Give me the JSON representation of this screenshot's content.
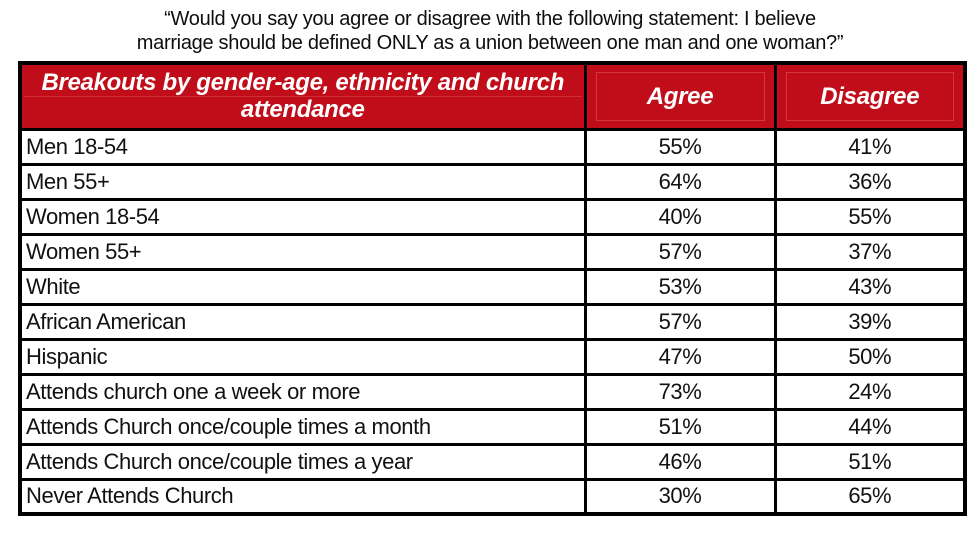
{
  "title": {
    "line1": "“Would you say you agree or disagree with the following statement: I believe",
    "line2": "marriage should  be defined ONLY as a union between one man and one woman?”"
  },
  "colors": {
    "header_bg": "#c00d19",
    "header_text": "#ffffff",
    "border": "#000000",
    "body_text": "#111111",
    "row_bg": "#ffffff"
  },
  "chart_data": {
    "type": "table",
    "title": "“Would you say you agree or disagree with the following statement: I believe marriage should be defined ONLY as a union between one man and one woman?”",
    "columns": [
      "Breakouts by gender-age, ethnicity and church attendance",
      "Agree",
      "Disagree"
    ],
    "rows": [
      {
        "label": "Men 18-54",
        "agree": "55%",
        "disagree": "41%"
      },
      {
        "label": "Men 55+",
        "agree": "64%",
        "disagree": "36%"
      },
      {
        "label": "Women 18-54",
        "agree": "40%",
        "disagree": "55%"
      },
      {
        "label": "Women 55+",
        "agree": "57%",
        "disagree": "37%"
      },
      {
        "label": "White",
        "agree": "53%",
        "disagree": "43%"
      },
      {
        "label": "African American",
        "agree": "57%",
        "disagree": "39%"
      },
      {
        "label": "Hispanic",
        "agree": "47%",
        "disagree": "50%"
      },
      {
        "label": "Attends church one a week or more",
        "agree": "73%",
        "disagree": "24%"
      },
      {
        "label": "Attends Church once/couple times a month",
        "agree": "51%",
        "disagree": "44%"
      },
      {
        "label": "Attends Church once/couple times a year",
        "agree": "46%",
        "disagree": "51%"
      },
      {
        "label": "Never Attends Church",
        "agree": "30%",
        "disagree": "65%"
      }
    ]
  }
}
